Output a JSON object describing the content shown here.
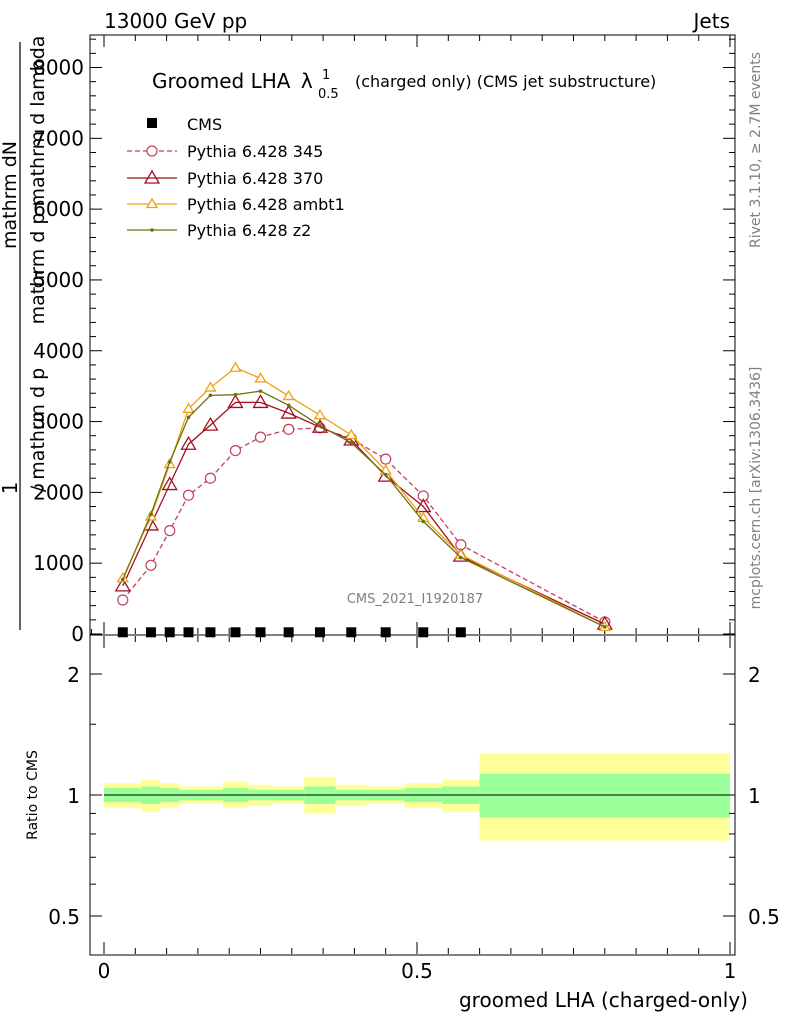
{
  "header": {
    "energy": "13000 GeV pp",
    "process": "Jets"
  },
  "plot_title": {
    "main": "Groomed LHA",
    "lambda": "λ",
    "sup": "1",
    "sub": "0.5",
    "rest": "(charged only) (CMS jet substructure)"
  },
  "side_text": {
    "rivet": "Rivet 3.1.10, ≥ 2.7M events",
    "mcplots": "mcplots.cern.ch [arXiv:1306.3436]"
  },
  "watermark": "CMS_2021_I1920187",
  "ylabel_main": {
    "one": "1",
    "frac_num_left": "mathrm d N",
    "frac_den_left": "mathrm d N",
    "mid": "/ mathrm d p",
    "sub_T": "T",
    "mid2": "mathrm d p",
    "sub_T2": "T",
    "tail": "mathrm d lambda",
    "num_right": "mathrm dN",
    "den_right": "mathrm d p  mathrm d lambda"
  },
  "ylabel_ratio": "Ratio to CMS",
  "xlabel": "groomed LHA (charged-only)",
  "colors": {
    "cms": "#000000",
    "p345": "#c0405a",
    "p370": "#a01020",
    "ambt1": "#f0a010",
    "z2": "#707010",
    "band_inner": "#99ff99",
    "band_outer": "#ffff99"
  },
  "chart_data": {
    "type": "line",
    "main": {
      "ylim": [
        0,
        8500
      ],
      "yticks": [
        0,
        1000,
        2000,
        3000,
        4000,
        5000,
        6000,
        7000,
        8000
      ],
      "ytick_labels": [
        "0",
        "1000",
        "2000",
        "3000",
        "4000",
        "5000",
        "6000",
        "7000",
        "8000"
      ],
      "xlim": [
        0,
        1
      ],
      "x": [
        0.03,
        0.075,
        0.105,
        0.135,
        0.17,
        0.21,
        0.25,
        0.295,
        0.345,
        0.395,
        0.45,
        0.51,
        0.57,
        0.8
      ],
      "series": [
        {
          "name": "CMS",
          "style": "square",
          "values": [
            10,
            10,
            10,
            10,
            10,
            10,
            10,
            10,
            10,
            10,
            10,
            10,
            10,
            null
          ]
        },
        {
          "name": "Pythia 6.428 345",
          "style": "circle-dashed",
          "values": [
            480,
            970,
            1460,
            1960,
            2200,
            2590,
            2780,
            2890,
            2910,
            2760,
            2470,
            1950,
            1260,
            170
          ]
        },
        {
          "name": "Pythia 6.428 370",
          "style": "triangle",
          "values": [
            680,
            1540,
            2110,
            2680,
            2950,
            3270,
            3270,
            3120,
            2920,
            2740,
            2230,
            1800,
            1100,
            140
          ]
        },
        {
          "name": "Pythia 6.428 ambt1",
          "style": "triangle-small",
          "values": [
            790,
            1660,
            2400,
            3180,
            3480,
            3760,
            3610,
            3360,
            3090,
            2810,
            2310,
            1640,
            1120,
            100
          ]
        },
        {
          "name": "Pythia 6.428 z2",
          "style": "dot",
          "values": [
            770,
            1690,
            2430,
            3060,
            3370,
            3380,
            3430,
            3230,
            2940,
            2700,
            2250,
            1590,
            1080,
            100
          ]
        }
      ]
    },
    "ratio": {
      "ylabel": "Ratio to CMS",
      "yticks": [
        0.5,
        1,
        2
      ],
      "ytick_labels": [
        "0.5",
        "1",
        "2"
      ],
      "xticks": [
        0,
        0.5,
        1
      ],
      "xtick_labels": [
        "0",
        "0.5",
        "1"
      ],
      "bins": [
        {
          "lo": 0.0,
          "hi": 0.06,
          "inner": [
            0.96,
            1.04
          ],
          "outer": [
            0.93,
            1.07
          ]
        },
        {
          "lo": 0.06,
          "hi": 0.09,
          "inner": [
            0.95,
            1.05
          ],
          "outer": [
            0.91,
            1.09
          ]
        },
        {
          "lo": 0.09,
          "hi": 0.12,
          "inner": [
            0.96,
            1.04
          ],
          "outer": [
            0.93,
            1.07
          ]
        },
        {
          "lo": 0.12,
          "hi": 0.15,
          "inner": [
            0.97,
            1.03
          ],
          "outer": [
            0.95,
            1.05
          ]
        },
        {
          "lo": 0.15,
          "hi": 0.19,
          "inner": [
            0.97,
            1.03
          ],
          "outer": [
            0.95,
            1.05
          ]
        },
        {
          "lo": 0.19,
          "hi": 0.23,
          "inner": [
            0.96,
            1.04
          ],
          "outer": [
            0.93,
            1.08
          ]
        },
        {
          "lo": 0.23,
          "hi": 0.27,
          "inner": [
            0.97,
            1.03
          ],
          "outer": [
            0.94,
            1.06
          ]
        },
        {
          "lo": 0.27,
          "hi": 0.32,
          "inner": [
            0.97,
            1.03
          ],
          "outer": [
            0.95,
            1.05
          ]
        },
        {
          "lo": 0.32,
          "hi": 0.37,
          "inner": [
            0.95,
            1.05
          ],
          "outer": [
            0.9,
            1.11
          ]
        },
        {
          "lo": 0.37,
          "hi": 0.42,
          "inner": [
            0.97,
            1.03
          ],
          "outer": [
            0.94,
            1.06
          ]
        },
        {
          "lo": 0.42,
          "hi": 0.48,
          "inner": [
            0.97,
            1.03
          ],
          "outer": [
            0.95,
            1.05
          ]
        },
        {
          "lo": 0.48,
          "hi": 0.54,
          "inner": [
            0.96,
            1.04
          ],
          "outer": [
            0.93,
            1.07
          ]
        },
        {
          "lo": 0.54,
          "hi": 0.6,
          "inner": [
            0.95,
            1.05
          ],
          "outer": [
            0.91,
            1.09
          ]
        },
        {
          "lo": 0.6,
          "hi": 1.0,
          "inner": [
            0.88,
            1.13
          ],
          "outer": [
            0.77,
            1.27
          ]
        }
      ]
    }
  }
}
